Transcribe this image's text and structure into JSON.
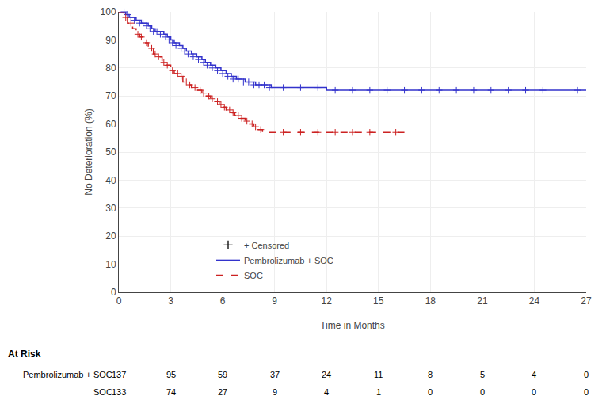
{
  "chart_data": {
    "type": "line",
    "line_shape": "step",
    "x_label": "Time in Months",
    "y_label": "No Deterioration (%)",
    "xlim": [
      0,
      27
    ],
    "ylim": [
      0,
      100
    ],
    "xticks": [
      0,
      3,
      6,
      9,
      12,
      15,
      18,
      21,
      24,
      27
    ],
    "yticks": [
      0,
      10,
      20,
      30,
      40,
      50,
      60,
      70,
      80,
      90,
      100
    ],
    "grid": true,
    "legend": "lower left",
    "censored": {
      "label": "+ Censored",
      "marker": "cross",
      "color": "#000000"
    },
    "series": [
      {
        "name": "Pembrolizumab + SOC",
        "color": "#3333cc",
        "line_style": "solid",
        "marker": "cross",
        "x": [
          0,
          0.2,
          0.4,
          0.6,
          0.8,
          1.0,
          1.1,
          1.3,
          1.5,
          1.7,
          1.9,
          2.1,
          2.3,
          2.6,
          2.8,
          3.0,
          3.2,
          3.5,
          3.7,
          3.9,
          4.2,
          4.5,
          4.8,
          5.0,
          5.3,
          5.6,
          5.9,
          6.2,
          6.5,
          6.8,
          7.0,
          7.3,
          7.6,
          7.9,
          8.2,
          8.5,
          8.8,
          9.0,
          10.0,
          11.0,
          12.0,
          13.0,
          14.0,
          15.0,
          16.0,
          17.0,
          18.0,
          19.0,
          20.0,
          21.0,
          22.0,
          23.0,
          24.0,
          25.0,
          26.0,
          27.0
        ],
        "values": [
          100,
          100,
          99,
          98,
          98,
          97,
          97,
          96,
          96,
          95,
          94,
          93,
          93,
          92,
          91,
          90,
          89,
          88,
          87,
          86,
          85,
          84,
          83,
          82,
          81,
          80,
          79,
          78,
          77,
          76,
          76,
          75,
          75,
          74,
          74,
          74,
          73,
          73,
          73,
          73,
          72,
          72,
          72,
          72,
          72,
          72,
          72,
          72,
          72,
          72,
          72,
          72,
          72,
          72,
          72,
          72
        ],
        "censored_x": [
          0.3,
          0.5,
          0.7,
          0.9,
          1.2,
          1.4,
          1.6,
          1.8,
          2.0,
          2.2,
          2.4,
          2.7,
          2.9,
          3.1,
          3.3,
          3.6,
          3.8,
          4.0,
          4.3,
          4.6,
          4.9,
          5.1,
          5.4,
          5.7,
          6.0,
          6.3,
          6.6,
          6.9,
          7.2,
          7.5,
          7.8,
          8.1,
          8.4,
          8.7,
          9.5,
          10.5,
          11.5,
          12.5,
          13.5,
          14.5,
          15.5,
          16.5,
          17.5,
          18.5,
          19.5,
          20.5,
          21.5,
          22.5,
          23.5,
          24.5,
          26.5
        ],
        "censored_values": [
          100,
          99,
          98,
          97,
          96,
          96,
          95,
          94,
          93,
          93,
          92,
          91,
          90,
          89,
          88,
          87,
          86,
          85,
          84,
          83,
          82,
          81,
          80,
          79,
          78,
          77,
          76,
          76,
          75,
          75,
          74,
          74,
          74,
          73,
          73,
          73,
          73,
          72,
          72,
          72,
          72,
          72,
          72,
          72,
          72,
          72,
          72,
          72,
          72,
          72,
          72
        ]
      },
      {
        "name": "SOC",
        "color": "#cc2222",
        "line_style": "dashed",
        "marker": "cross",
        "x": [
          0,
          0.3,
          0.5,
          0.8,
          1.0,
          1.2,
          1.5,
          1.7,
          2.0,
          2.2,
          2.5,
          2.7,
          3.0,
          3.2,
          3.5,
          3.7,
          4.0,
          4.2,
          4.5,
          4.8,
          5.0,
          5.3,
          5.5,
          5.8,
          6.0,
          6.2,
          6.5,
          6.7,
          7.0,
          7.3,
          7.5,
          7.8,
          8.0,
          8.3,
          8.7,
          9.0,
          10.0,
          11.0,
          12.0,
          13.0,
          14.0,
          15.0,
          16.0,
          16.5
        ],
        "values": [
          100,
          98,
          96,
          94,
          92,
          91,
          89,
          87,
          85,
          84,
          82,
          81,
          79,
          78,
          77,
          75,
          74,
          73,
          72,
          71,
          70,
          69,
          68,
          67,
          66,
          65,
          64,
          63,
          62,
          61,
          60,
          59,
          58,
          57,
          57,
          57,
          57,
          57,
          57,
          57,
          57,
          57,
          57,
          57
        ],
        "censored_x": [
          0.4,
          0.7,
          1.1,
          1.3,
          1.6,
          1.9,
          2.1,
          2.3,
          2.6,
          2.8,
          3.1,
          3.4,
          3.6,
          3.9,
          4.1,
          4.4,
          4.7,
          4.9,
          5.2,
          5.4,
          5.7,
          5.9,
          6.1,
          6.4,
          6.6,
          6.9,
          7.1,
          7.4,
          7.7,
          7.9,
          8.2,
          9.5,
          10.5,
          11.5,
          12.5,
          13.5,
          14.5,
          16.0
        ],
        "censored_values": [
          98,
          96,
          92,
          91,
          89,
          87,
          85,
          84,
          82,
          81,
          79,
          78,
          77,
          75,
          74,
          73,
          72,
          71,
          70,
          69,
          68,
          67,
          66,
          65,
          64,
          63,
          62,
          61,
          60,
          59,
          58,
          57,
          57,
          57,
          57,
          57,
          57,
          57
        ]
      }
    ],
    "at_risk": {
      "title": "At Risk",
      "x": [
        0,
        3,
        6,
        9,
        12,
        15,
        18,
        21,
        24,
        27
      ],
      "rows": [
        {
          "name": "Pembrolizumab + SOC",
          "values": [
            137,
            95,
            59,
            37,
            24,
            11,
            8,
            5,
            4,
            0
          ]
        },
        {
          "name": "SOC",
          "values": [
            133,
            74,
            27,
            9,
            4,
            1,
            0,
            0,
            0,
            0
          ]
        }
      ]
    }
  }
}
